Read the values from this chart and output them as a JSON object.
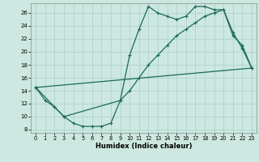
{
  "xlabel": "Humidex (Indice chaleur)",
  "xlim": [
    -0.5,
    23.5
  ],
  "ylim": [
    7.5,
    27.5
  ],
  "xticks": [
    0,
    1,
    2,
    3,
    4,
    5,
    6,
    7,
    8,
    9,
    10,
    11,
    12,
    13,
    14,
    15,
    16,
    17,
    18,
    19,
    20,
    21,
    22,
    23
  ],
  "yticks": [
    8,
    10,
    12,
    14,
    16,
    18,
    20,
    22,
    24,
    26
  ],
  "bg_color": "#cce8e0",
  "line_color": "#1a6b5a",
  "grid_color": "#aacfc7",
  "line1_x": [
    0,
    1,
    2,
    3,
    4,
    5,
    6,
    7,
    8,
    9,
    10,
    11,
    12,
    13,
    14,
    15,
    16,
    17,
    18,
    19,
    20,
    21,
    22,
    23
  ],
  "line1_y": [
    14.5,
    12.5,
    11.5,
    10.0,
    9.0,
    8.5,
    8.5,
    8.5,
    9.0,
    12.5,
    19.5,
    23.5,
    27.0,
    26.0,
    25.5,
    25.0,
    25.5,
    27.0,
    27.0,
    26.5,
    26.5,
    22.5,
    21.0,
    17.5
  ],
  "line2_x": [
    0,
    2,
    3,
    9,
    10,
    11,
    12,
    13,
    14,
    15,
    16,
    17,
    18,
    19,
    20,
    21,
    22,
    23
  ],
  "line2_y": [
    14.5,
    11.5,
    10.0,
    12.5,
    14.0,
    16.0,
    18.0,
    19.5,
    21.0,
    22.5,
    23.5,
    24.5,
    25.5,
    26.0,
    26.5,
    23.0,
    20.5,
    17.5
  ],
  "line3_x": [
    0,
    23
  ],
  "line3_y": [
    14.5,
    17.5
  ]
}
